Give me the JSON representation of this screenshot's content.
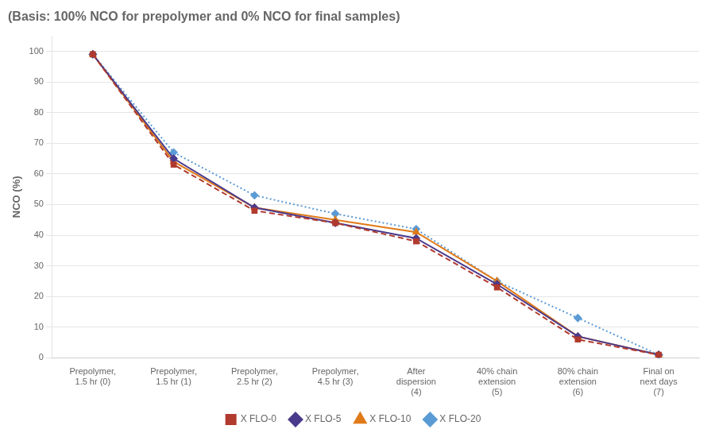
{
  "chart_data": {
    "type": "line",
    "title": "(Basis: 100% NCO for prepolymer and 0% NCO for final samples)",
    "y_label": "NCO (%)",
    "categories": [
      "Prepolymer,\n1.5 hr (0)",
      "Prepolymer,\n1.5 hr (1)",
      "Prepolymer,\n2.5 hr (2)",
      "Prepolymer,\n4.5 hr (3)",
      "After\ndispersion\n(4)",
      "40% chain\nextension\n(5)",
      "80% chain\nextension\n(6)",
      "Final on\nnext days\n(7)"
    ],
    "series": [
      {
        "name": "X FLO-0",
        "color": "#b03a2e",
        "values": [
          99,
          63,
          48,
          44,
          38,
          23,
          6,
          1
        ],
        "marker": "square",
        "line_style": "dashed"
      },
      {
        "name": "X FLO-5",
        "color": "#4a3a8c",
        "values": [
          99,
          65,
          49,
          44,
          39,
          24,
          7,
          1
        ],
        "marker": "diamond",
        "line_style": "solid"
      },
      {
        "name": "X FLO-10",
        "color": "#e07b1a",
        "values": [
          99,
          64,
          49,
          45,
          41,
          25,
          7,
          1
        ],
        "marker": "triangle",
        "line_style": "solid"
      },
      {
        "name": "X FLO-20",
        "color": "#5b9bd5",
        "values": [
          99,
          67,
          53,
          47,
          42,
          25,
          13,
          1
        ],
        "marker": "diamond",
        "line_style": "dotted"
      }
    ],
    "ylim": [
      0,
      105
    ],
    "yticks": [
      0,
      10,
      20,
      30,
      40,
      50,
      60,
      70,
      80,
      90,
      100
    ],
    "grid": true,
    "legend": "bottom"
  }
}
